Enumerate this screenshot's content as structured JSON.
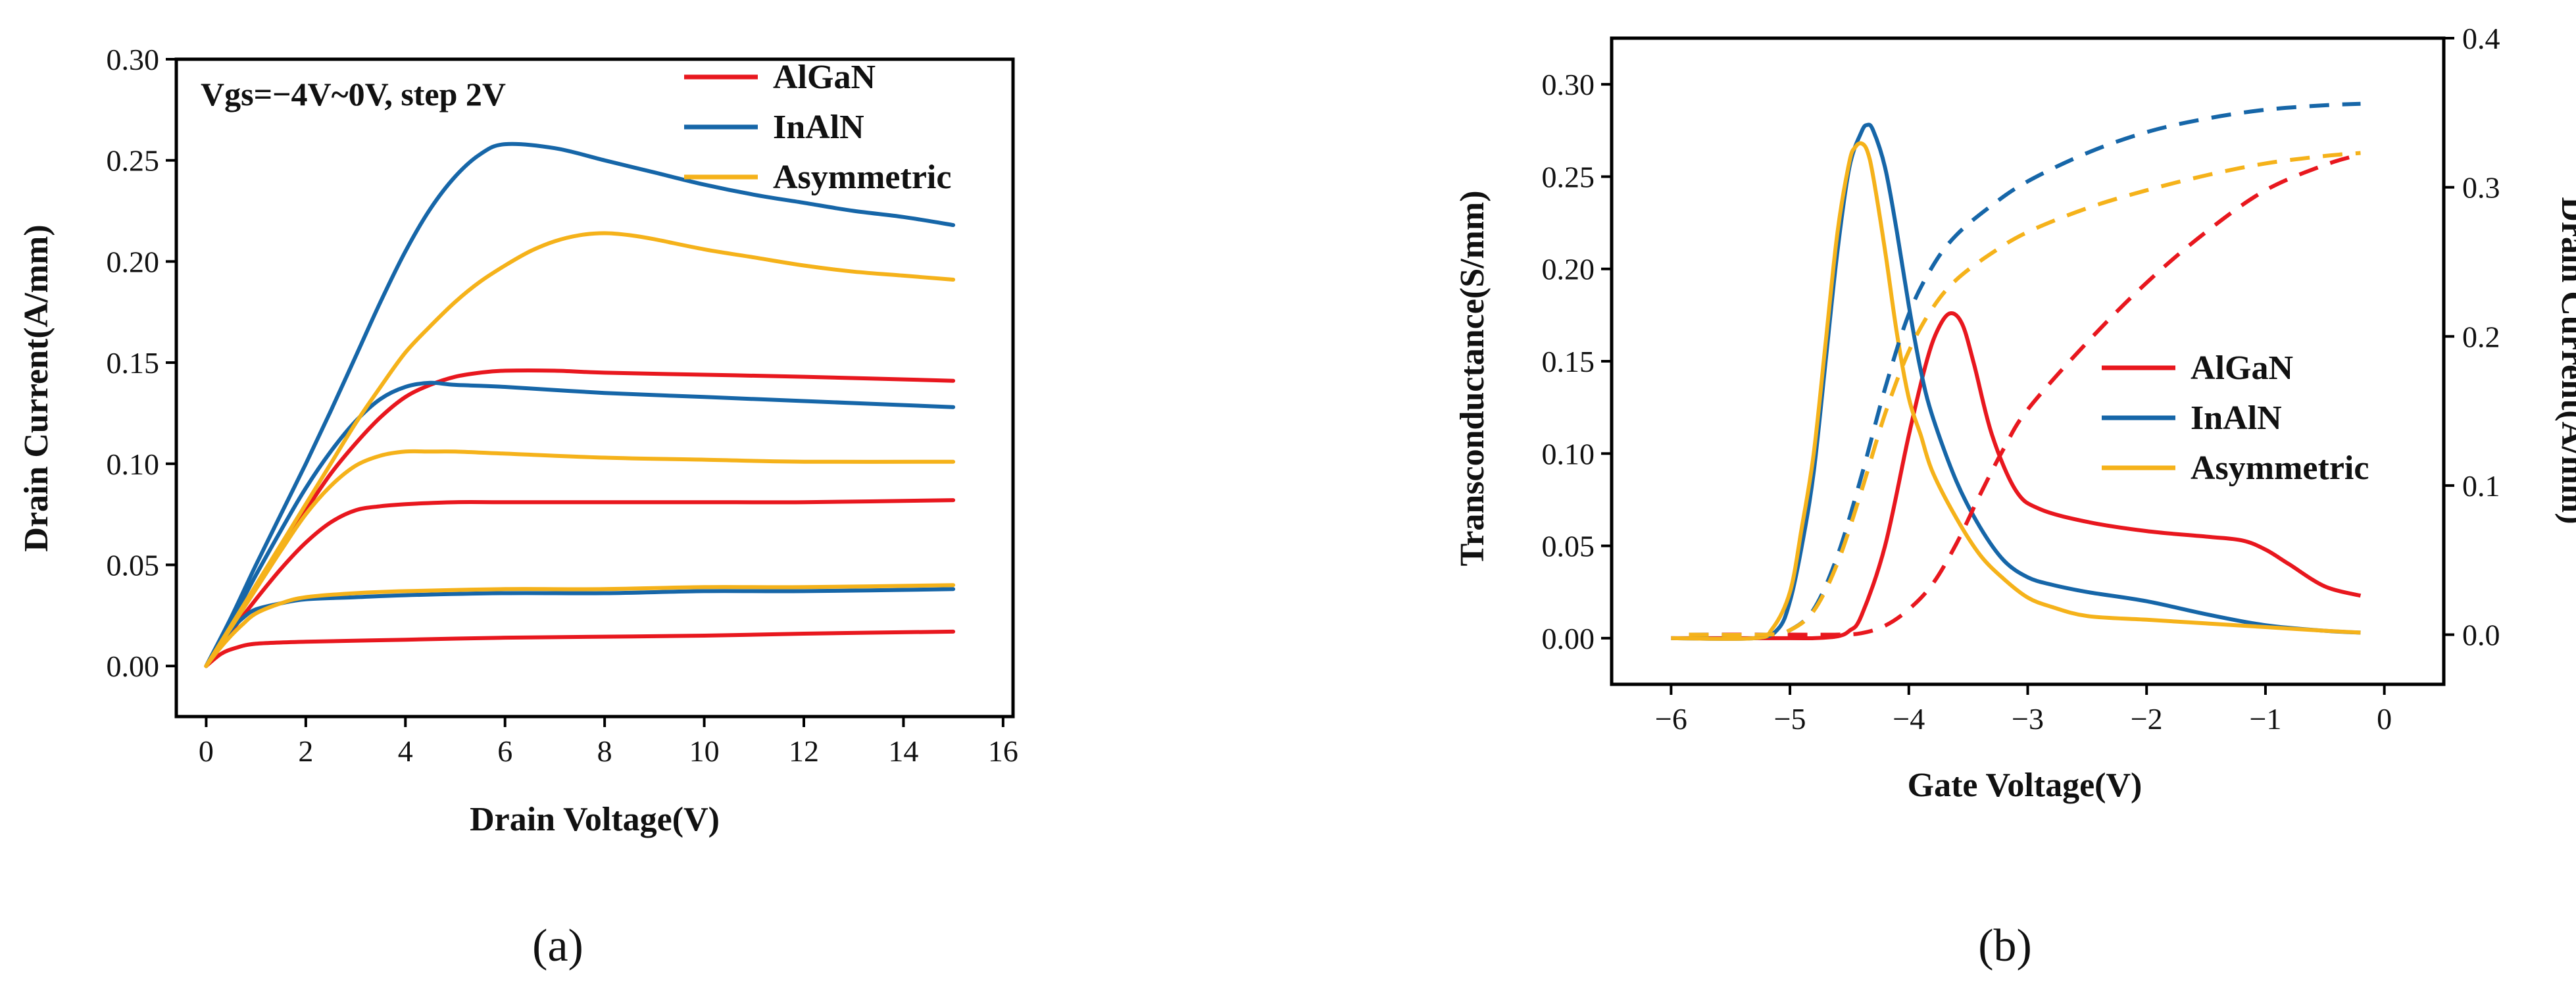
{
  "chart_data": [
    {
      "type": "line",
      "id": "a",
      "caption": "(a)",
      "xlabel": "Drain Voltage(V)",
      "ylabel": "Drain Current(A/mm)",
      "xlim": [
        -0.6,
        16.2
      ],
      "ylim": [
        -0.025,
        0.3
      ],
      "xticks": [
        0,
        2,
        4,
        6,
        8,
        10,
        12,
        14,
        16
      ],
      "yticks": [
        0.0,
        0.05,
        0.1,
        0.15,
        0.2,
        0.25,
        0.3
      ],
      "xtick_labels": [
        "0",
        "2",
        "4",
        "6",
        "8",
        "10",
        "12",
        "14",
        "16"
      ],
      "ytick_labels": [
        "0.00",
        "0.05",
        "0.10",
        "0.15",
        "0.20",
        "0.25",
        "0.30"
      ],
      "annotation": "Vgs=−4V~0V, step 2V",
      "legend": [
        "AlGaN",
        "InAlN",
        "Asymmetric"
      ],
      "legend_position": "top-right",
      "colors": {
        "AlGaN": "#e8171e",
        "InAlN": "#1666a8",
        "Asymmetric": "#f5b21a"
      },
      "series": [
        {
          "name": "AlGaN",
          "vgs": "-4V",
          "x": [
            0,
            0.3,
            0.6,
            1,
            2,
            4,
            6,
            8,
            10,
            12,
            15
          ],
          "y": [
            0,
            0.006,
            0.009,
            0.011,
            0.012,
            0.013,
            0.014,
            0.0145,
            0.015,
            0.016,
            0.017
          ]
        },
        {
          "name": "AlGaN",
          "vgs": "-2V",
          "x": [
            0,
            0.5,
            1,
            1.5,
            2,
            2.5,
            3,
            3.5,
            4,
            5,
            6,
            8,
            10,
            12,
            15
          ],
          "y": [
            0,
            0.017,
            0.033,
            0.048,
            0.061,
            0.071,
            0.077,
            0.079,
            0.08,
            0.081,
            0.081,
            0.081,
            0.081,
            0.081,
            0.082
          ]
        },
        {
          "name": "AlGaN",
          "vgs": "0V",
          "x": [
            0,
            0.5,
            1,
            1.5,
            2,
            2.5,
            3,
            3.5,
            4,
            4.5,
            5,
            5.5,
            6,
            7,
            8,
            10,
            12,
            15
          ],
          "y": [
            0,
            0.019,
            0.039,
            0.058,
            0.077,
            0.095,
            0.11,
            0.123,
            0.133,
            0.139,
            0.143,
            0.145,
            0.146,
            0.146,
            0.145,
            0.144,
            0.143,
            0.141
          ]
        },
        {
          "name": "InAlN",
          "vgs": "-4V",
          "x": [
            0,
            0.25,
            0.5,
            0.75,
            1,
            1.5,
            2,
            3,
            4,
            6,
            8,
            10,
            12,
            15
          ],
          "y": [
            0,
            0.01,
            0.018,
            0.024,
            0.028,
            0.031,
            0.033,
            0.034,
            0.035,
            0.036,
            0.036,
            0.037,
            0.037,
            0.038
          ]
        },
        {
          "name": "InAlN",
          "vgs": "-2V",
          "x": [
            0,
            0.5,
            1,
            1.5,
            2,
            2.5,
            3,
            3.5,
            4,
            4.5,
            5,
            6,
            8,
            10,
            12,
            15
          ],
          "y": [
            0,
            0.022,
            0.045,
            0.067,
            0.088,
            0.106,
            0.121,
            0.132,
            0.138,
            0.14,
            0.139,
            0.138,
            0.135,
            0.133,
            0.131,
            0.128
          ]
        },
        {
          "name": "InAlN",
          "vgs": "0V",
          "x": [
            0,
            0.5,
            1,
            1.5,
            2,
            2.5,
            3,
            3.5,
            4,
            4.5,
            5,
            5.5,
            6,
            7,
            8,
            9,
            10,
            11,
            12,
            13,
            14,
            15
          ],
          "y": [
            0,
            0.024,
            0.05,
            0.075,
            0.1,
            0.126,
            0.153,
            0.18,
            0.205,
            0.226,
            0.242,
            0.253,
            0.258,
            0.256,
            0.25,
            0.244,
            0.238,
            0.233,
            0.229,
            0.225,
            0.222,
            0.218
          ]
        },
        {
          "name": "Asymmetric",
          "vgs": "-4V",
          "x": [
            0,
            0.25,
            0.5,
            0.75,
            1,
            1.5,
            2,
            3,
            4,
            6,
            8,
            10,
            12,
            15
          ],
          "y": [
            0,
            0.008,
            0.015,
            0.021,
            0.026,
            0.031,
            0.034,
            0.036,
            0.037,
            0.038,
            0.038,
            0.039,
            0.039,
            0.04
          ]
        },
        {
          "name": "Asymmetric",
          "vgs": "-2V",
          "x": [
            0,
            0.5,
            1,
            1.5,
            2,
            2.5,
            3,
            3.5,
            4,
            4.5,
            5,
            6,
            8,
            10,
            12,
            15
          ],
          "y": [
            0,
            0.019,
            0.038,
            0.057,
            0.075,
            0.089,
            0.099,
            0.104,
            0.106,
            0.106,
            0.106,
            0.105,
            0.103,
            0.102,
            0.101,
            0.101
          ]
        },
        {
          "name": "Asymmetric",
          "vgs": "0V",
          "x": [
            0,
            0.5,
            1,
            1.5,
            2,
            2.5,
            3,
            3.5,
            4,
            4.5,
            5,
            5.5,
            6,
            6.5,
            7,
            7.5,
            8,
            8.5,
            9,
            10,
            11,
            12,
            13,
            14,
            15
          ],
          "y": [
            0,
            0.02,
            0.04,
            0.06,
            0.08,
            0.1,
            0.12,
            0.138,
            0.155,
            0.168,
            0.18,
            0.19,
            0.198,
            0.205,
            0.21,
            0.213,
            0.214,
            0.213,
            0.211,
            0.206,
            0.202,
            0.198,
            0.195,
            0.193,
            0.191
          ]
        }
      ]
    },
    {
      "type": "line",
      "id": "b",
      "caption": "(b)",
      "xlabel": "Gate Voltage(V)",
      "ylabel": "Transconductance(S/mm)",
      "ylabel_right": "Drain Current(A/mm)",
      "xlim": [
        -6.5,
        0.5
      ],
      "ylim": [
        -0.025,
        0.325
      ],
      "ylim_right": [
        -0.0333,
        0.4
      ],
      "xticks": [
        -6,
        -5,
        -4,
        -3,
        -2,
        -1,
        0
      ],
      "xtick_labels": [
        "−6",
        "−5",
        "−4",
        "−3",
        "−2",
        "−1",
        "0"
      ],
      "yticks": [
        0.0,
        0.05,
        0.1,
        0.15,
        0.2,
        0.25,
        0.3
      ],
      "ytick_labels": [
        "0.00",
        "0.05",
        "0.10",
        "0.15",
        "0.20",
        "0.25",
        "0.30"
      ],
      "yticks_right": [
        0.0,
        0.1,
        0.2,
        0.3,
        0.4
      ],
      "ytick_labels_right": [
        "0.0",
        "0.1",
        "0.2",
        "0.3",
        "0.4"
      ],
      "legend": [
        "AlGaN",
        "InAlN",
        "Asymmetric"
      ],
      "legend_position": "center-right",
      "colors": {
        "AlGaN": "#e8171e",
        "InAlN": "#1666a8",
        "Asymmetric": "#f5b21a"
      },
      "series": [
        {
          "name": "AlGaN",
          "kind": "transconductance",
          "axis": "left",
          "x": [
            -6,
            -5,
            -4.8,
            -4.6,
            -4.5,
            -4.4,
            -4.2,
            -4.0,
            -3.85,
            -3.75,
            -3.65,
            -3.55,
            -3.45,
            -3.3,
            -3.1,
            -2.9,
            -2.5,
            -2,
            -1.5,
            -1.2,
            -1,
            -0.8,
            -0.5,
            -0.2
          ],
          "y": [
            0,
            0,
            0,
            0.001,
            0.004,
            0.012,
            0.05,
            0.11,
            0.15,
            0.168,
            0.176,
            0.17,
            0.148,
            0.11,
            0.08,
            0.07,
            0.063,
            0.058,
            0.055,
            0.053,
            0.048,
            0.04,
            0.028,
            0.023
          ]
        },
        {
          "name": "InAlN",
          "kind": "transconductance",
          "axis": "left",
          "x": [
            -6,
            -5.3,
            -5.1,
            -5.0,
            -4.9,
            -4.8,
            -4.7,
            -4.6,
            -4.5,
            -4.4,
            -4.35,
            -4.3,
            -4.2,
            -4.1,
            -4.0,
            -3.9,
            -3.8,
            -3.6,
            -3.4,
            -3.2,
            -3.0,
            -2.8,
            -2.5,
            -2,
            -1.5,
            -1,
            -0.5,
            -0.2
          ],
          "y": [
            0,
            0,
            0.005,
            0.02,
            0.05,
            0.09,
            0.15,
            0.21,
            0.255,
            0.274,
            0.278,
            0.275,
            0.255,
            0.22,
            0.18,
            0.145,
            0.12,
            0.085,
            0.06,
            0.042,
            0.033,
            0.029,
            0.025,
            0.02,
            0.013,
            0.007,
            0.004,
            0.003
          ]
        },
        {
          "name": "Asymmetric",
          "kind": "transconductance",
          "axis": "left",
          "x": [
            -6,
            -5.3,
            -5.15,
            -5.0,
            -4.9,
            -4.8,
            -4.7,
            -4.6,
            -4.5,
            -4.45,
            -4.4,
            -4.35,
            -4.3,
            -4.2,
            -4.1,
            -4.0,
            -3.9,
            -3.8,
            -3.6,
            -3.4,
            -3.2,
            -3.0,
            -2.8,
            -2.5,
            -2,
            -1.5,
            -1,
            -0.5,
            -0.2
          ],
          "y": [
            0,
            0,
            0.005,
            0.025,
            0.06,
            0.1,
            0.16,
            0.22,
            0.258,
            0.266,
            0.268,
            0.264,
            0.25,
            0.21,
            0.165,
            0.13,
            0.11,
            0.09,
            0.065,
            0.045,
            0.032,
            0.022,
            0.017,
            0.012,
            0.01,
            0.008,
            0.006,
            0.004,
            0.003
          ]
        },
        {
          "name": "AlGaN",
          "kind": "drain_current",
          "axis": "right",
          "x": [
            -5.85,
            -5.0,
            -4.6,
            -4.4,
            -4.2,
            -4.0,
            -3.8,
            -3.6,
            -3.4,
            -3.2,
            -3.0,
            -2.5,
            -2.0,
            -1.5,
            -1.0,
            -0.5,
            -0.2
          ],
          "y": [
            0,
            0,
            0,
            0.001,
            0.006,
            0.017,
            0.034,
            0.061,
            0.094,
            0.125,
            0.151,
            0.196,
            0.236,
            0.27,
            0.298,
            0.315,
            0.322
          ]
        },
        {
          "name": "InAlN",
          "kind": "drain_current",
          "axis": "right",
          "x": [
            -5.85,
            -5.2,
            -5.0,
            -4.8,
            -4.6,
            -4.4,
            -4.2,
            -4.0,
            -3.8,
            -3.6,
            -3.3,
            -3.0,
            -2.5,
            -2.0,
            -1.5,
            -1.0,
            -0.5,
            -0.2
          ],
          "y": [
            0,
            0,
            0.003,
            0.017,
            0.053,
            0.106,
            0.165,
            0.215,
            0.247,
            0.268,
            0.288,
            0.304,
            0.323,
            0.337,
            0.346,
            0.352,
            0.355,
            0.356
          ]
        },
        {
          "name": "Asymmetric",
          "kind": "drain_current",
          "axis": "right",
          "x": [
            -5.85,
            -5.2,
            -5.0,
            -4.8,
            -4.6,
            -4.4,
            -4.2,
            -4.0,
            -3.8,
            -3.6,
            -3.3,
            -3.0,
            -2.5,
            -2.0,
            -1.5,
            -1.0,
            -0.5,
            -0.2
          ],
          "y": [
            0,
            0,
            0.003,
            0.016,
            0.048,
            0.096,
            0.148,
            0.19,
            0.219,
            0.238,
            0.256,
            0.27,
            0.286,
            0.298,
            0.308,
            0.316,
            0.321,
            0.323
          ]
        }
      ]
    }
  ]
}
